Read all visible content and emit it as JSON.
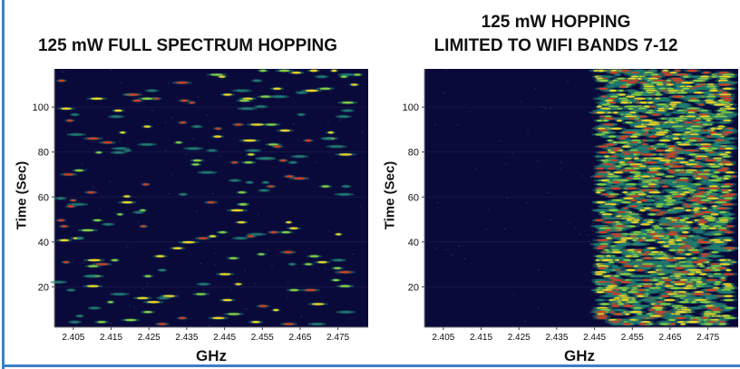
{
  "chart_data": [
    {
      "type": "heatmap",
      "title": "125 mW FULL SPECTRUM HOPPING",
      "xlabel": "GHz",
      "ylabel": "Time (Sec)",
      "x_ticks": [
        "2.405",
        "2.415",
        "2.425",
        "2.435",
        "2.445",
        "2.455",
        "2.465",
        "2.475"
      ],
      "y_ticks": [
        "20",
        "40",
        "60",
        "80",
        "100"
      ],
      "xlim": [
        2.4,
        2.483
      ],
      "ylim": [
        2,
        117
      ],
      "x_tick_values": [
        2.405,
        2.415,
        2.425,
        2.435,
        2.445,
        2.455,
        2.465,
        2.475
      ],
      "y_tick_values": [
        20,
        40,
        60,
        80,
        100
      ],
      "band": [
        2.401,
        2.481
      ],
      "density": 0.16,
      "noise": 0.03,
      "seed": 7,
      "colors": {
        "background": "#0a0a3a",
        "low": "#1f7a70",
        "mid": "#8ed23a",
        "high": "#ffd81e",
        "peak": "#e03a1e"
      }
    },
    {
      "type": "heatmap",
      "title": "125 mW HOPPING LIMITED TO WIFI BANDS 7-12",
      "title_lines": [
        "125 mW HOPPING",
        "LIMITED TO WIFI BANDS 7-12"
      ],
      "xlabel": "GHz",
      "ylabel": "Time (Sec)",
      "x_ticks": [
        "2.405",
        "2.415",
        "2.425",
        "2.435",
        "2.445",
        "2.455",
        "2.465",
        "2.475"
      ],
      "y_ticks": [
        "20",
        "40",
        "60",
        "80",
        "100"
      ],
      "xlim": [
        2.4,
        2.483
      ],
      "ylim": [
        2,
        117
      ],
      "x_tick_values": [
        2.405,
        2.415,
        2.425,
        2.435,
        2.445,
        2.455,
        2.465,
        2.475
      ],
      "y_tick_values": [
        20,
        40,
        60,
        80,
        100
      ],
      "band": [
        2.446,
        2.481
      ],
      "density": 0.85,
      "noise": 0.03,
      "seed": 11,
      "colors": {
        "background": "#0a0a3a",
        "low": "#1f7a70",
        "mid": "#8ed23a",
        "high": "#ffd81e",
        "peak": "#e03a1e"
      }
    }
  ]
}
